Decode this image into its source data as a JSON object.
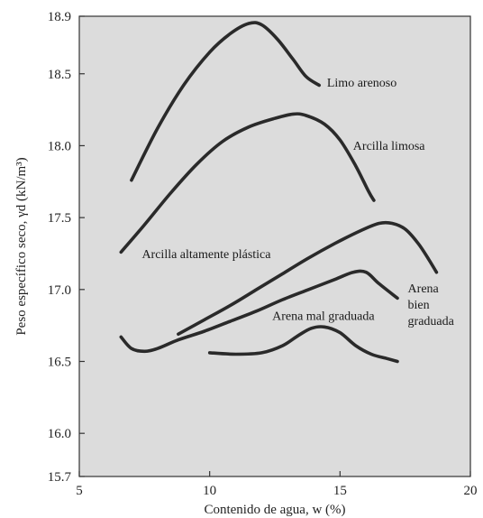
{
  "chart_data": {
    "type": "line",
    "xlabel": "Contenido de agua, w (%)",
    "ylabel": "Peso específico seco, γd (kN/m³)",
    "xlim": [
      5,
      20
    ],
    "ylim": [
      15.7,
      18.9
    ],
    "x_ticks": [
      "5",
      "10",
      "15",
      "20"
    ],
    "y_ticks": [
      "15.7",
      "16.0",
      "16.5",
      "17.0",
      "17.5",
      "18.0",
      "18.5",
      "18.9"
    ],
    "grid": false,
    "plot_background": "#dcdcdc",
    "series": [
      {
        "name": "Limo arenoso",
        "x": [
          7.0,
          8.0,
          9.0,
          10.0,
          10.8,
          11.5,
          12.0,
          12.6,
          13.2,
          13.7,
          14.2
        ],
        "y": [
          17.76,
          18.12,
          18.42,
          18.65,
          18.78,
          18.85,
          18.84,
          18.74,
          18.6,
          18.48,
          18.42
        ]
      },
      {
        "name": "Arcilla limosa",
        "x": [
          6.6,
          7.5,
          8.5,
          9.5,
          10.5,
          11.5,
          12.5,
          13.2,
          13.7,
          14.4,
          15.0,
          15.6,
          16.1,
          16.3
        ],
        "y": [
          17.26,
          17.45,
          17.67,
          17.87,
          18.03,
          18.13,
          18.19,
          18.22,
          18.21,
          18.15,
          18.04,
          17.86,
          17.68,
          17.62
        ]
      },
      {
        "name": "Arcilla altamente plástica",
        "x": [
          6.6,
          7.0,
          7.5,
          8.0,
          8.8,
          9.8,
          10.8,
          11.8,
          12.8,
          13.8,
          14.8,
          15.5,
          16.0,
          16.5,
          17.2
        ],
        "y": [
          16.67,
          16.59,
          16.57,
          16.59,
          16.65,
          16.71,
          16.78,
          16.85,
          16.93,
          17.0,
          17.07,
          17.12,
          17.12,
          17.04,
          16.94
        ]
      },
      {
        "name": "Arena bien graduada",
        "x": [
          8.8,
          9.8,
          10.8,
          11.8,
          12.8,
          13.8,
          14.8,
          15.8,
          16.5,
          17.0,
          17.5,
          18.0,
          18.4,
          18.7
        ],
        "y": [
          16.69,
          16.79,
          16.89,
          17.0,
          17.11,
          17.22,
          17.32,
          17.41,
          17.46,
          17.46,
          17.42,
          17.32,
          17.21,
          17.12
        ]
      },
      {
        "name": "Arena mal graduada",
        "x": [
          10.0,
          11.0,
          12.0,
          12.8,
          13.4,
          13.9,
          14.4,
          15.0,
          15.6,
          16.2,
          16.8,
          17.2
        ],
        "y": [
          16.56,
          16.55,
          16.56,
          16.61,
          16.68,
          16.73,
          16.74,
          16.7,
          16.61,
          16.55,
          16.52,
          16.5
        ]
      }
    ],
    "annotations": [
      {
        "lines": [
          "Limo arenoso"
        ],
        "x": 14.5,
        "y": 18.41,
        "anchor": "start"
      },
      {
        "lines": [
          "Arcilla limosa"
        ],
        "x": 15.5,
        "y": 17.97,
        "anchor": "start"
      },
      {
        "lines": [
          "Arcilla altamente plástica"
        ],
        "x": 7.4,
        "y": 17.22,
        "anchor": "start"
      },
      {
        "lines": [
          "Arena",
          "bien",
          "graduada"
        ],
        "x": 17.6,
        "y": 16.98,
        "anchor": "start"
      },
      {
        "lines": [
          "Arena mal graduada"
        ],
        "x": 12.4,
        "y": 16.79,
        "anchor": "start"
      }
    ]
  }
}
